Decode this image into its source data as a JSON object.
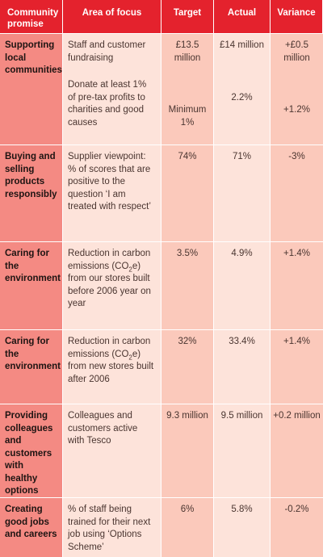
{
  "headers": {
    "promise": "Community promise",
    "focus": "Area of focus",
    "target": "Target",
    "actual": "Actual",
    "variance": "Variance"
  },
  "rows": [
    {
      "promise": "Supporting local communities",
      "items": [
        {
          "focus": "Staff and customer fundraising",
          "target": "£13.5 million",
          "actual": "£14 million",
          "variance": "+£0.5 million"
        },
        {
          "focus": "Donate at least 1% of pre-tax profits to charities and good causes",
          "target": "Minimum 1%",
          "actual": "2.2%",
          "variance": "+1.2%"
        }
      ]
    },
    {
      "promise": "Buying and selling products responsibly",
      "focus": "Supplier viewpoint: % of scores that are positive to the question ‘I am treated with respect’",
      "target": "74%",
      "actual": "71%",
      "variance": "-3%"
    },
    {
      "promise": "Caring for the environment",
      "focus_pre": "Reduction in carbon emissions (CO",
      "focus_sub": "2",
      "focus_post": "e) from our stores built before 2006 year on year",
      "target": "3.5%",
      "actual": "4.9%",
      "variance": "+1.4%"
    },
    {
      "promise": "Caring for the environment",
      "focus_pre": "Reduction in carbon emissions (CO",
      "focus_sub": "2",
      "focus_post": "e) from new stores built after 2006",
      "target": "32%",
      "actual": "33.4%",
      "variance": "+1.4%"
    },
    {
      "promise": "Providing colleagues and customers with healthy options",
      "focus": "Colleagues and customers active with Tesco",
      "target": "9.3 million",
      "actual": "9.5 million",
      "variance": "+0.2 million"
    },
    {
      "promise": "Creating good jobs and careers",
      "focus": "% of staff being trained for their next job using ‘Options Scheme’",
      "target": "6%",
      "actual": "5.8%",
      "variance": "-0.2%"
    }
  ]
}
